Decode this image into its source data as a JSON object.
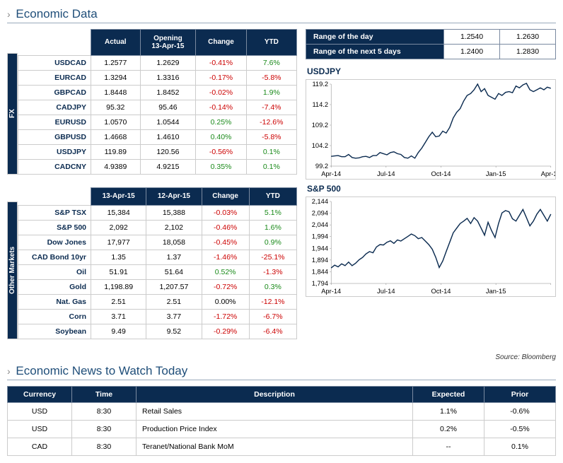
{
  "headings": {
    "economic_data": "Economic Data",
    "economic_news": "Economic News to Watch Today",
    "source": "Source: Bloomberg"
  },
  "fx_table": {
    "side_label": "FX",
    "headers": [
      "",
      "Actual",
      "Opening\n13-Apr-15",
      "Change",
      "YTD"
    ],
    "rows": [
      {
        "lbl": "USDCAD",
        "actual": "1.2577",
        "open": "1.2629",
        "chg": "-0.41%",
        "chg_cls": "neg",
        "ytd": "7.6%",
        "ytd_cls": "pos"
      },
      {
        "lbl": "EURCAD",
        "actual": "1.3294",
        "open": "1.3316",
        "chg": "-0.17%",
        "chg_cls": "neg",
        "ytd": "-5.8%",
        "ytd_cls": "neg"
      },
      {
        "lbl": "GBPCAD",
        "actual": "1.8448",
        "open": "1.8452",
        "chg": "-0.02%",
        "chg_cls": "neg",
        "ytd": "1.9%",
        "ytd_cls": "pos"
      },
      {
        "lbl": "CADJPY",
        "actual": "95.32",
        "open": "95.46",
        "chg": "-0.14%",
        "chg_cls": "neg",
        "ytd": "-7.4%",
        "ytd_cls": "neg"
      },
      {
        "lbl": "EURUSD",
        "actual": "1.0570",
        "open": "1.0544",
        "chg": "0.25%",
        "chg_cls": "pos",
        "ytd": "-12.6%",
        "ytd_cls": "neg"
      },
      {
        "lbl": "GBPUSD",
        "actual": "1.4668",
        "open": "1.4610",
        "chg": "0.40%",
        "chg_cls": "pos",
        "ytd": "-5.8%",
        "ytd_cls": "neg"
      },
      {
        "lbl": "USDJPY",
        "actual": "119.89",
        "open": "120.56",
        "chg": "-0.56%",
        "chg_cls": "neg",
        "ytd": "0.1%",
        "ytd_cls": "pos"
      },
      {
        "lbl": "CADCNY",
        "actual": "4.9389",
        "open": "4.9215",
        "chg": "0.35%",
        "chg_cls": "pos",
        "ytd": "0.1%",
        "ytd_cls": "pos"
      }
    ]
  },
  "markets_table": {
    "side_label": "Other Markets",
    "headers": [
      "",
      "13-Apr-15",
      "12-Apr-15",
      "Change",
      "YTD"
    ],
    "rows": [
      {
        "lbl": "S&P TSX",
        "a": "15,384",
        "b": "15,388",
        "chg": "-0.03%",
        "chg_cls": "neg",
        "ytd": "5.1%",
        "ytd_cls": "pos"
      },
      {
        "lbl": "S&P 500",
        "a": "2,092",
        "b": "2,102",
        "chg": "-0.46%",
        "chg_cls": "neg",
        "ytd": "1.6%",
        "ytd_cls": "pos"
      },
      {
        "lbl": "Dow Jones",
        "a": "17,977",
        "b": "18,058",
        "chg": "-0.45%",
        "chg_cls": "neg",
        "ytd": "0.9%",
        "ytd_cls": "pos"
      },
      {
        "lbl": "CAD Bond 10yr",
        "a": "1.35",
        "b": "1.37",
        "chg": "-1.46%",
        "chg_cls": "neg",
        "ytd": "-25.1%",
        "ytd_cls": "neg"
      },
      {
        "lbl": "Oil",
        "a": "51.91",
        "b": "51.64",
        "chg": "0.52%",
        "chg_cls": "pos",
        "ytd": "-1.3%",
        "ytd_cls": "neg"
      },
      {
        "lbl": "Gold",
        "a": "1,198.89",
        "b": "1,207.57",
        "chg": "-0.72%",
        "chg_cls": "neg",
        "ytd": "0.3%",
        "ytd_cls": "pos"
      },
      {
        "lbl": "Nat. Gas",
        "a": "2.51",
        "b": "2.51",
        "chg": "0.00%",
        "chg_cls": "zero",
        "ytd": "-12.1%",
        "ytd_cls": "neg"
      },
      {
        "lbl": "Corn",
        "a": "3.71",
        "b": "3.77",
        "chg": "-1.72%",
        "chg_cls": "neg",
        "ytd": "-6.7%",
        "ytd_cls": "neg"
      },
      {
        "lbl": "Soybean",
        "a": "9.49",
        "b": "9.52",
        "chg": "-0.29%",
        "chg_cls": "neg",
        "ytd": "-6.4%",
        "ytd_cls": "neg"
      }
    ]
  },
  "ranges": {
    "rows": [
      {
        "lbl": "Range of the day",
        "lo": "1.2540",
        "hi": "1.2630"
      },
      {
        "lbl": "Range of the next 5 days",
        "lo": "1.2400",
        "hi": "1.2830"
      }
    ]
  },
  "chart1": {
    "title": "USDJPY",
    "y_ticks": [
      "119.2",
      "114.2",
      "109.2",
      "104.2",
      "99.2"
    ],
    "x_ticks": [
      "Apr-14",
      "Jul-14",
      "Oct-14",
      "Jan-15",
      "Apr-15"
    ],
    "ylim": [
      99.2,
      121
    ],
    "series": [
      101.8,
      101.9,
      102.0,
      101.7,
      101.7,
      102.3,
      101.5,
      101.3,
      101.4,
      101.7,
      101.8,
      101.5,
      102.0,
      102.0,
      102.8,
      102.5,
      102.2,
      102.8,
      103.0,
      102.5,
      102.3,
      101.5,
      101.3,
      101.9,
      101.3,
      102.8,
      104.0,
      105.5,
      107.0,
      108.2,
      107.0,
      107.2,
      108.5,
      108.0,
      109.5,
      112.0,
      113.5,
      114.5,
      116.5,
      118.0,
      118.5,
      119.5,
      121.0,
      119.0,
      119.8,
      118.0,
      117.5,
      117.0,
      118.5,
      118.0,
      118.8,
      119.0,
      118.7,
      120.5,
      120.0,
      120.8,
      121.2,
      119.5,
      119.0,
      119.5,
      120.0,
      119.5,
      120.2,
      119.9
    ]
  },
  "chart2": {
    "title": "S&P 500",
    "y_ticks": [
      "2,144",
      "2,094",
      "2,044",
      "1,994",
      "1,944",
      "1,894",
      "1,844",
      "1,794"
    ],
    "x_ticks": [
      "Apr-14",
      "Jul-14",
      "Oct-14",
      "Jan-15",
      ""
    ],
    "ylim": [
      1794,
      2144
    ],
    "series": [
      1860,
      1872,
      1865,
      1878,
      1870,
      1885,
      1870,
      1880,
      1895,
      1905,
      1920,
      1930,
      1925,
      1950,
      1960,
      1958,
      1970,
      1976,
      1965,
      1980,
      1975,
      1985,
      1995,
      2005,
      1998,
      1985,
      1990,
      1975,
      1960,
      1940,
      1905,
      1862,
      1890,
      1930,
      1970,
      2010,
      2030,
      2050,
      2060,
      2072,
      2050,
      2075,
      2060,
      2030,
      2000,
      2055,
      2020,
      1990,
      2050,
      2095,
      2105,
      2100,
      2070,
      2060,
      2085,
      2110,
      2075,
      2040,
      2060,
      2090,
      2110,
      2085,
      2060,
      2090
    ]
  },
  "news": {
    "headers": [
      "Currency",
      "Time",
      "Description",
      "Expected",
      "Prior"
    ],
    "rows": [
      {
        "cur": "USD",
        "time": "8:30",
        "desc": "Retail Sales",
        "exp": "1.1%",
        "prior": "-0.6%"
      },
      {
        "cur": "USD",
        "time": "8:30",
        "desc": "Production Price Index",
        "exp": "0.2%",
        "prior": "-0.5%"
      },
      {
        "cur": "CAD",
        "time": "8:30",
        "desc": "Teranet/National Bank MoM",
        "exp": "--",
        "prior": "0.1%"
      }
    ]
  },
  "colors": {
    "navy": "#0b2b50",
    "line": "#ccc"
  }
}
